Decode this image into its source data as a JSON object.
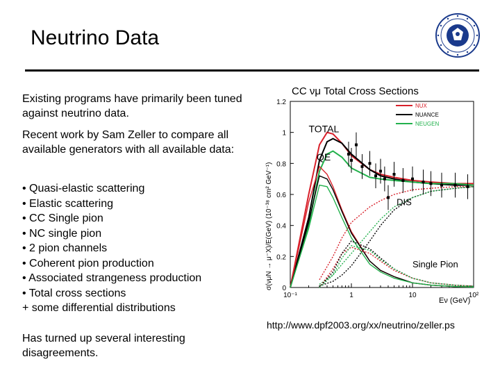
{
  "slide": {
    "title": "Neutrino Data",
    "intro": "Existing programs have primarily been tuned against neutrino data.",
    "recent": "Recent work by Sam Zeller to compare all available generators with all available data:",
    "bullets": [
      "• Quasi-elastic scattering",
      "• Elastic scattering",
      "• CC Single pion",
      "• NC single pion",
      "• 2 pion channels",
      "• Coherent pion production",
      "• Associated strangeness production",
      "• Total cross sections",
      "+ some differential distributions"
    ],
    "conclusion": "Has turned up several interesting disagreements.",
    "source_url": "http://www.dpf2003.org/xx/neutrino/zeller.ps"
  },
  "chart_data": {
    "type": "line",
    "title": "CC νμ Total Cross Sections",
    "xlabel": "Eν (GeV)",
    "ylabel": "σ(νμN → μ⁻X)/E(GeV) (10⁻³⁸ cm² GeV⁻¹)",
    "x_scale": "log",
    "xlim": [
      0.1,
      100
    ],
    "ylim": [
      0,
      1.2
    ],
    "x_ticks": [
      "10⁻¹",
      "1",
      "10",
      "10²"
    ],
    "y_ticks": [
      "0",
      "0.2",
      "0.4",
      "0.6",
      "0.8",
      "1",
      "1.2"
    ],
    "legend": [
      "NUX",
      "NUANCE",
      "NEUGEN"
    ],
    "legend_position": "top-right",
    "colors": {
      "NUX": "#d8202a",
      "NUANCE": "#000000",
      "NEUGEN": "#22b14c"
    },
    "annotations": [
      "TOTAL",
      "QE",
      "DIS",
      "Single Pion"
    ],
    "series": [
      {
        "name": "NUX",
        "label": "TOTAL",
        "x": [
          0.1,
          0.2,
          0.3,
          0.4,
          0.5,
          0.7,
          1,
          2,
          3,
          5,
          10,
          20,
          50,
          100
        ],
        "y": [
          0.0,
          0.6,
          0.92,
          1.0,
          0.99,
          0.93,
          0.85,
          0.76,
          0.73,
          0.71,
          0.69,
          0.68,
          0.67,
          0.67
        ]
      },
      {
        "name": "NUANCE",
        "label": "TOTAL",
        "x": [
          0.1,
          0.2,
          0.3,
          0.4,
          0.5,
          0.7,
          1,
          2,
          3,
          5,
          10,
          20,
          50,
          100
        ],
        "y": [
          0.0,
          0.45,
          0.82,
          0.94,
          0.96,
          0.93,
          0.86,
          0.76,
          0.72,
          0.7,
          0.68,
          0.67,
          0.66,
          0.66
        ]
      },
      {
        "name": "NEUGEN",
        "label": "TOTAL",
        "x": [
          0.1,
          0.2,
          0.3,
          0.4,
          0.5,
          0.7,
          1,
          2,
          3,
          5,
          10,
          20,
          50,
          100
        ],
        "y": [
          0.0,
          0.4,
          0.75,
          0.86,
          0.88,
          0.84,
          0.77,
          0.71,
          0.7,
          0.69,
          0.68,
          0.67,
          0.67,
          0.66
        ]
      },
      {
        "name": "NUX",
        "label": "QE",
        "x": [
          0.1,
          0.2,
          0.3,
          0.4,
          0.5,
          0.7,
          1,
          2,
          3,
          5,
          10,
          20,
          50,
          100
        ],
        "y": [
          0.0,
          0.55,
          0.78,
          0.73,
          0.65,
          0.5,
          0.36,
          0.17,
          0.11,
          0.07,
          0.03,
          0.015,
          0.006,
          0.003
        ]
      },
      {
        "name": "NUANCE",
        "label": "QE",
        "x": [
          0.1,
          0.2,
          0.3,
          0.4,
          0.5,
          0.7,
          1,
          2,
          3,
          5,
          10,
          20,
          50,
          100
        ],
        "y": [
          0.0,
          0.42,
          0.72,
          0.7,
          0.63,
          0.49,
          0.35,
          0.17,
          0.11,
          0.07,
          0.03,
          0.015,
          0.006,
          0.003
        ]
      },
      {
        "name": "NEUGEN",
        "label": "QE",
        "x": [
          0.1,
          0.2,
          0.3,
          0.4,
          0.5,
          0.7,
          1,
          2,
          3,
          5,
          10,
          20,
          50,
          100
        ],
        "y": [
          0.0,
          0.38,
          0.66,
          0.65,
          0.58,
          0.45,
          0.32,
          0.15,
          0.1,
          0.06,
          0.03,
          0.015,
          0.006,
          0.003
        ]
      },
      {
        "name": "NUX",
        "label": "DIS",
        "x": [
          0.3,
          0.5,
          0.7,
          1,
          2,
          3,
          5,
          10,
          20,
          50,
          100
        ],
        "y": [
          0.05,
          0.2,
          0.32,
          0.42,
          0.52,
          0.56,
          0.6,
          0.63,
          0.64,
          0.65,
          0.65
        ]
      },
      {
        "name": "NUANCE",
        "label": "DIS",
        "x": [
          0.3,
          0.5,
          0.7,
          1,
          2,
          3,
          5,
          10,
          20,
          50,
          100
        ],
        "y": [
          0.01,
          0.04,
          0.08,
          0.14,
          0.3,
          0.4,
          0.5,
          0.58,
          0.62,
          0.64,
          0.65
        ]
      },
      {
        "name": "NEUGEN",
        "label": "DIS",
        "x": [
          0.3,
          0.5,
          0.7,
          1,
          2,
          3,
          5,
          10,
          20,
          50,
          100
        ],
        "y": [
          0.02,
          0.08,
          0.15,
          0.22,
          0.36,
          0.44,
          0.52,
          0.58,
          0.62,
          0.64,
          0.65
        ]
      },
      {
        "name": "NUX",
        "label": "Single Pion",
        "x": [
          0.3,
          0.5,
          0.7,
          1,
          2,
          3,
          5,
          10,
          20,
          50,
          100
        ],
        "y": [
          0.0,
          0.12,
          0.22,
          0.26,
          0.22,
          0.17,
          0.11,
          0.06,
          0.03,
          0.015,
          0.008
        ]
      },
      {
        "name": "NUANCE",
        "label": "Single Pion",
        "x": [
          0.3,
          0.5,
          0.7,
          1,
          2,
          3,
          5,
          10,
          20,
          50,
          100
        ],
        "y": [
          0.0,
          0.1,
          0.22,
          0.3,
          0.25,
          0.19,
          0.12,
          0.06,
          0.03,
          0.015,
          0.008
        ]
      },
      {
        "name": "NEUGEN",
        "label": "Single Pion",
        "x": [
          0.3,
          0.5,
          0.7,
          1,
          2,
          3,
          5,
          10,
          20,
          50,
          100
        ],
        "y": [
          0.0,
          0.08,
          0.19,
          0.27,
          0.24,
          0.18,
          0.12,
          0.06,
          0.03,
          0.015,
          0.008
        ]
      }
    ],
    "data_points": [
      {
        "x": 0.9,
        "y": 0.86
      },
      {
        "x": 1.0,
        "y": 0.82
      },
      {
        "x": 1.2,
        "y": 0.92
      },
      {
        "x": 1.5,
        "y": 0.78
      },
      {
        "x": 2.0,
        "y": 0.8
      },
      {
        "x": 2.5,
        "y": 0.72
      },
      {
        "x": 3.0,
        "y": 0.75
      },
      {
        "x": 3.5,
        "y": 0.7
      },
      {
        "x": 4.0,
        "y": 0.58
      },
      {
        "x": 5.0,
        "y": 0.73
      },
      {
        "x": 7.0,
        "y": 0.69
      },
      {
        "x": 10,
        "y": 0.7
      },
      {
        "x": 15,
        "y": 0.68
      },
      {
        "x": 20,
        "y": 0.67
      },
      {
        "x": 30,
        "y": 0.66
      },
      {
        "x": 50,
        "y": 0.66
      },
      {
        "x": 80,
        "y": 0.65
      }
    ]
  }
}
